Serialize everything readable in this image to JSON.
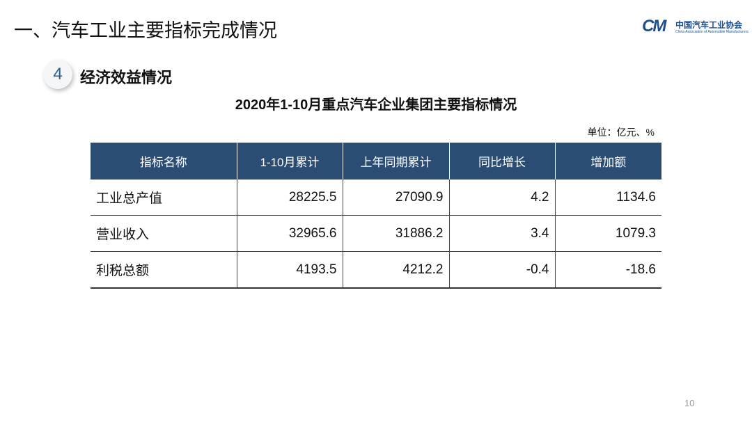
{
  "header": {
    "title": "一、汽车工业主要指标完成情况",
    "logo_mark": "CM",
    "logo_cn": "中国汽车工业协会",
    "logo_en": "China Association of Automobile Manufacturers"
  },
  "section": {
    "number": "4",
    "title": "经济效益情况"
  },
  "table": {
    "title": "2020年1-10月重点汽车企业集团主要指标情况",
    "unit": "单位：亿元、%",
    "columns": [
      "指标名称",
      "1-10月累计",
      "上年同期累计",
      "同比增长",
      "增加额"
    ],
    "rows": [
      [
        "工业总产值",
        "28225.5",
        "27090.9",
        "4.2",
        "1134.6"
      ],
      [
        "营业收入",
        "32965.6",
        "31886.2",
        "3.4",
        "1079.3"
      ],
      [
        "利税总额",
        "4193.5",
        "4212.2",
        "-0.4",
        "-18.6"
      ]
    ]
  },
  "page_number": "10"
}
